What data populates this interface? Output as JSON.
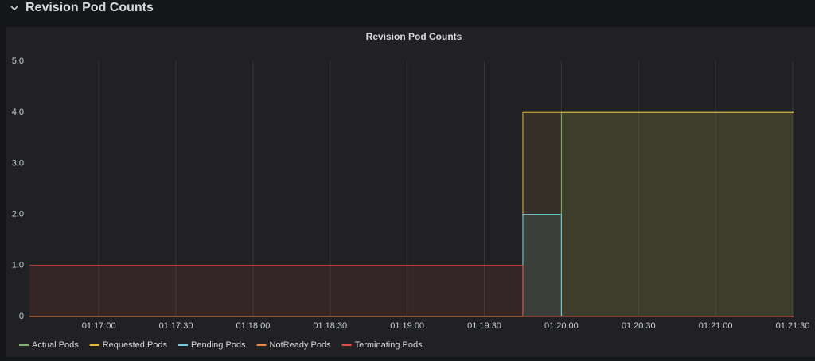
{
  "row_title": "Revision Pod Counts",
  "chart_data": {
    "type": "line",
    "step": true,
    "fill": true,
    "title": "Revision Pod Counts",
    "x": [
      "01:16:33",
      "01:19:45",
      "01:20:00",
      "01:21:30"
    ],
    "xlim": [
      "01:16:33",
      "01:21:30"
    ],
    "xticks": [
      "01:17:00",
      "01:17:30",
      "01:18:00",
      "01:18:30",
      "01:19:00",
      "01:19:30",
      "01:20:00",
      "01:20:30",
      "01:21:00",
      "01:21:30"
    ],
    "ylim": [
      0,
      5
    ],
    "yticks": [
      0,
      {
        "value": 1,
        "label": "1.0"
      },
      {
        "value": 2,
        "label": "2.0"
      },
      {
        "value": 3,
        "label": "3.0"
      },
      {
        "value": 4,
        "label": "4.0"
      },
      {
        "value": 5,
        "label": "5.0"
      }
    ],
    "grid": true,
    "legend": "bottom-left",
    "series": [
      {
        "name": "Actual Pods",
        "color": "#7eb26d",
        "values": [
          0,
          0,
          4,
          4
        ]
      },
      {
        "name": "Requested Pods",
        "color": "#eab839",
        "values": [
          0,
          4,
          4,
          4
        ]
      },
      {
        "name": "Pending Pods",
        "color": "#6ed0e0",
        "values": [
          0,
          2,
          0,
          0
        ]
      },
      {
        "name": "NotReady Pods",
        "color": "#ef843c",
        "values": [
          0,
          0,
          0,
          0
        ]
      },
      {
        "name": "Terminating Pods",
        "color": "#e24d42",
        "values": [
          1,
          0,
          0,
          0
        ]
      }
    ]
  }
}
